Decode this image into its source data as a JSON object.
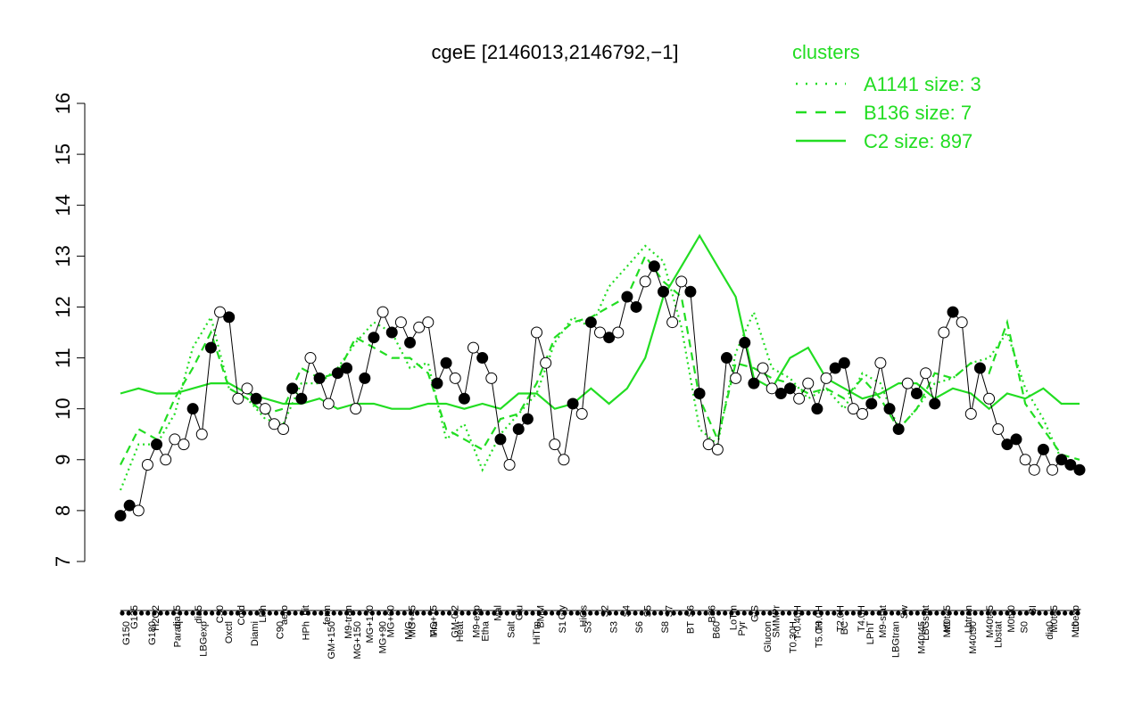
{
  "chart_data": {
    "type": "line",
    "title": "cgeE [2146013,2146792,−1]",
    "xlabel": "",
    "ylabel": "",
    "ylim": [
      7,
      16
    ],
    "yticks": [
      7,
      8,
      9,
      10,
      11,
      12,
      13,
      14,
      15,
      16
    ],
    "grid": false,
    "legend": {
      "title": "clusters",
      "placement": "top-right",
      "entries": [
        {
          "label": "A1141 size: 3",
          "style": "dotted"
        },
        {
          "label": "B136 size: 7",
          "style": "dashed"
        },
        {
          "label": "C2 size: 897",
          "style": "solid"
        }
      ]
    },
    "colors": {
      "clusters": "#22dd22",
      "points_dark": "#000000",
      "points_light": "#ffffff"
    },
    "x_tick_labels_top": [
      "G135",
      "H2O2",
      "dia15",
      "dia5",
      "C30",
      "Cold",
      "LPh",
      "aero",
      "nit",
      "ferm",
      "M9-tran",
      "MG+120",
      "MG+60",
      "MG+45",
      "MG+15",
      "GM-0.2",
      "M9-exp",
      "Mal",
      "Glu",
      "BMM",
      "Gly",
      "HiOs",
      "S2",
      "S4",
      "S5",
      "S7",
      "S6",
      "B36",
      "LoTm",
      "G/S",
      "SMMPr",
      "T-0.40H",
      "T0.0H",
      "T2.0H",
      "T4.0H",
      "M9-stat",
      "Sw",
      "LBGstat",
      "M0t45",
      "Lbtran",
      "M40t45",
      "M0t90",
      "BI",
      "M0t45",
      "Lbexp"
    ],
    "x_tick_labels_bottom": [
      "G150",
      "G180",
      "Paraq",
      "LBGexp",
      "Oxctl",
      "Diami",
      "C90",
      "HPh",
      "GM+150",
      "MG+150",
      "MG+90",
      "M/G",
      "Fru",
      "Heat",
      "Etha",
      "Salt",
      "HiTm",
      "S1",
      "S3",
      "S3",
      "S6",
      "S8",
      "BT",
      "B60",
      "Pyr",
      "Glucon",
      "T0.30H",
      "T5.0H",
      "BC",
      "LPhT",
      "LBGtran",
      "M40t45",
      "Mt0",
      "M40t90",
      "Lbstat",
      "S0",
      "dia0",
      "Mt0"
    ],
    "series": [
      {
        "name": "C2 size: 897",
        "style": "solid",
        "x": [
          0,
          4,
          8,
          12,
          16,
          20,
          24,
          28,
          32,
          36,
          40,
          44,
          48,
          52,
          56,
          60,
          64,
          68,
          72,
          76,
          80,
          84,
          88,
          92,
          96,
          100,
          104,
          108,
          112,
          116,
          120,
          124,
          128,
          132,
          136,
          140,
          144,
          148,
          152,
          156,
          160,
          164,
          168,
          172,
          176,
          180,
          184,
          188,
          192,
          196,
          200,
          204,
          208,
          212
        ],
        "values": [
          10.3,
          10.4,
          10.3,
          10.3,
          10.4,
          10.5,
          10.5,
          10.3,
          10.2,
          10.1,
          10.1,
          10.2,
          10.0,
          10.1,
          10.1,
          10.0,
          10.0,
          10.1,
          10.1,
          10.0,
          10.1,
          10.0,
          10.3,
          10.3,
          10.0,
          10.1,
          10.4,
          10.1,
          10.4,
          11.0,
          12.2,
          12.8,
          13.4,
          12.8,
          12.2,
          10.6,
          10.4,
          11.0,
          11.2,
          10.6,
          10.4,
          10.2,
          10.3,
          10.5,
          10.5,
          10.2,
          10.4,
          10.3,
          10.0,
          10.3,
          10.2,
          10.4,
          10.1,
          10.1
        ]
      },
      {
        "name": "B136 size: 7",
        "style": "dashed",
        "x": [
          0,
          4,
          8,
          12,
          16,
          20,
          24,
          28,
          32,
          36,
          40,
          44,
          48,
          52,
          56,
          60,
          64,
          68,
          72,
          76,
          80,
          84,
          88,
          92,
          96,
          100,
          104,
          108,
          112,
          116,
          120,
          124,
          128,
          132,
          136,
          140,
          144,
          148,
          152,
          156,
          160,
          164,
          168,
          172,
          176,
          180,
          184,
          188,
          192,
          196,
          200,
          204,
          208,
          212
        ],
        "values": [
          8.9,
          9.6,
          9.4,
          10.2,
          10.8,
          11.5,
          10.4,
          10.2,
          9.9,
          10.0,
          10.8,
          10.6,
          10.7,
          11.4,
          11.2,
          11.0,
          11.0,
          10.7,
          9.6,
          9.4,
          9.2,
          9.8,
          9.9,
          10.5,
          11.4,
          11.7,
          11.8,
          12.0,
          12.2,
          13.0,
          12.5,
          12.2,
          10.2,
          9.4,
          10.9,
          10.8,
          10.6,
          10.5,
          10.3,
          10.4,
          10.2,
          10.6,
          10.2,
          9.6,
          10.0,
          10.7,
          10.6,
          10.9,
          10.7,
          11.7,
          10.1,
          9.6,
          9.1,
          9.0
        ]
      },
      {
        "name": "A1141 size: 3",
        "style": "dotted",
        "x": [
          0,
          4,
          8,
          12,
          16,
          20,
          24,
          28,
          32,
          36,
          40,
          44,
          48,
          52,
          56,
          60,
          64,
          68,
          72,
          76,
          80,
          84,
          88,
          92,
          96,
          100,
          104,
          108,
          112,
          116,
          120,
          124,
          128,
          132,
          136,
          140,
          144,
          148,
          152,
          156,
          160,
          164,
          168,
          172,
          176,
          180,
          184,
          188,
          192,
          196,
          200,
          204,
          208,
          212
        ],
        "values": [
          8.4,
          9.3,
          9.3,
          9.9,
          11.2,
          11.8,
          10.4,
          10.2,
          9.8,
          9.7,
          10.5,
          10.5,
          10.8,
          11.3,
          11.7,
          11.5,
          10.8,
          10.9,
          9.4,
          9.7,
          8.8,
          9.5,
          9.9,
          10.3,
          11.3,
          11.8,
          11.6,
          12.4,
          12.8,
          13.2,
          12.9,
          11.6,
          9.6,
          9.3,
          11.1,
          11.9,
          10.8,
          10.6,
          10.2,
          10.4,
          10.0,
          10.7,
          10.5,
          9.6,
          10.0,
          10.5,
          10.6,
          10.9,
          11.0,
          11.5,
          10.4,
          9.8,
          9.0,
          8.8
        ]
      }
    ],
    "points": {
      "x": [
        0,
        2,
        4,
        6,
        8,
        10,
        12,
        14,
        16,
        18,
        20,
        22,
        24,
        26,
        28,
        30,
        32,
        34,
        36,
        38,
        40,
        42,
        44,
        46,
        48,
        50,
        52,
        54,
        56,
        58,
        60,
        62,
        64,
        66,
        68,
        70,
        72,
        74,
        76,
        78,
        80,
        82,
        84,
        86,
        88,
        90,
        92,
        94,
        96,
        98,
        100,
        102,
        104,
        106,
        108,
        110,
        112,
        114,
        116,
        118,
        120,
        122,
        124,
        126,
        128,
        130,
        132,
        134,
        136,
        138,
        140,
        142,
        144,
        146,
        148,
        150,
        152,
        154,
        156,
        158,
        160,
        162,
        164,
        166,
        168,
        170,
        172,
        174,
        176,
        178,
        180,
        182,
        184,
        186,
        188,
        190,
        192,
        194,
        196,
        198,
        200,
        202,
        204,
        206,
        208,
        210,
        212
      ],
      "values": [
        7.9,
        8.1,
        8.0,
        8.9,
        9.3,
        9.0,
        9.4,
        9.3,
        10.0,
        9.5,
        11.2,
        11.9,
        11.8,
        10.2,
        10.4,
        10.2,
        10.0,
        9.7,
        9.6,
        10.4,
        10.2,
        11.0,
        10.6,
        10.1,
        10.7,
        10.8,
        10.0,
        10.6,
        11.4,
        11.9,
        11.5,
        11.7,
        11.3,
        11.6,
        11.7,
        10.5,
        10.9,
        10.6,
        10.2,
        11.2,
        11.0,
        10.6,
        9.4,
        8.9,
        9.6,
        9.8,
        11.5,
        10.9,
        9.3,
        9.0,
        10.1,
        9.9,
        11.7,
        11.5,
        11.4,
        11.5,
        12.2,
        12.0,
        12.5,
        12.8,
        12.3,
        11.7,
        12.5,
        12.3,
        10.3,
        9.3,
        9.2,
        11.0,
        10.6,
        11.3,
        10.5,
        10.8,
        10.4,
        10.3,
        10.4,
        10.2,
        10.5,
        10.0,
        10.6,
        10.8,
        10.9,
        10.0,
        9.9,
        10.1,
        10.9,
        10.0,
        9.6,
        10.5,
        10.3,
        10.7,
        10.1,
        11.5,
        11.9,
        11.7,
        9.9,
        10.8,
        10.2,
        9.6,
        9.3,
        9.4,
        9.0,
        8.8,
        9.2,
        8.8,
        9.0,
        8.9,
        8.8
      ],
      "filled": [
        true,
        true,
        false,
        false,
        true,
        false,
        false,
        false,
        true,
        false,
        true,
        false,
        true,
        false,
        false,
        true,
        false,
        false,
        false,
        true,
        true,
        false,
        true,
        false,
        true,
        true,
        false,
        true,
        true,
        false,
        true,
        false,
        true,
        false,
        false,
        true,
        true,
        false,
        true,
        false,
        true,
        false,
        true,
        false,
        true,
        true,
        false,
        false,
        false,
        false,
        true,
        false,
        true,
        false,
        true,
        false,
        true,
        true,
        false,
        true,
        true,
        false,
        false,
        true,
        true,
        false,
        false,
        true,
        false,
        true,
        true,
        false,
        false,
        true,
        true,
        false,
        false,
        true,
        false,
        true,
        true,
        false,
        false,
        true,
        false,
        true,
        true,
        false,
        true,
        false,
        true,
        false,
        true,
        false,
        false,
        true,
        false,
        false,
        true,
        true,
        false,
        false,
        true,
        false,
        true,
        true,
        true
      ]
    }
  }
}
